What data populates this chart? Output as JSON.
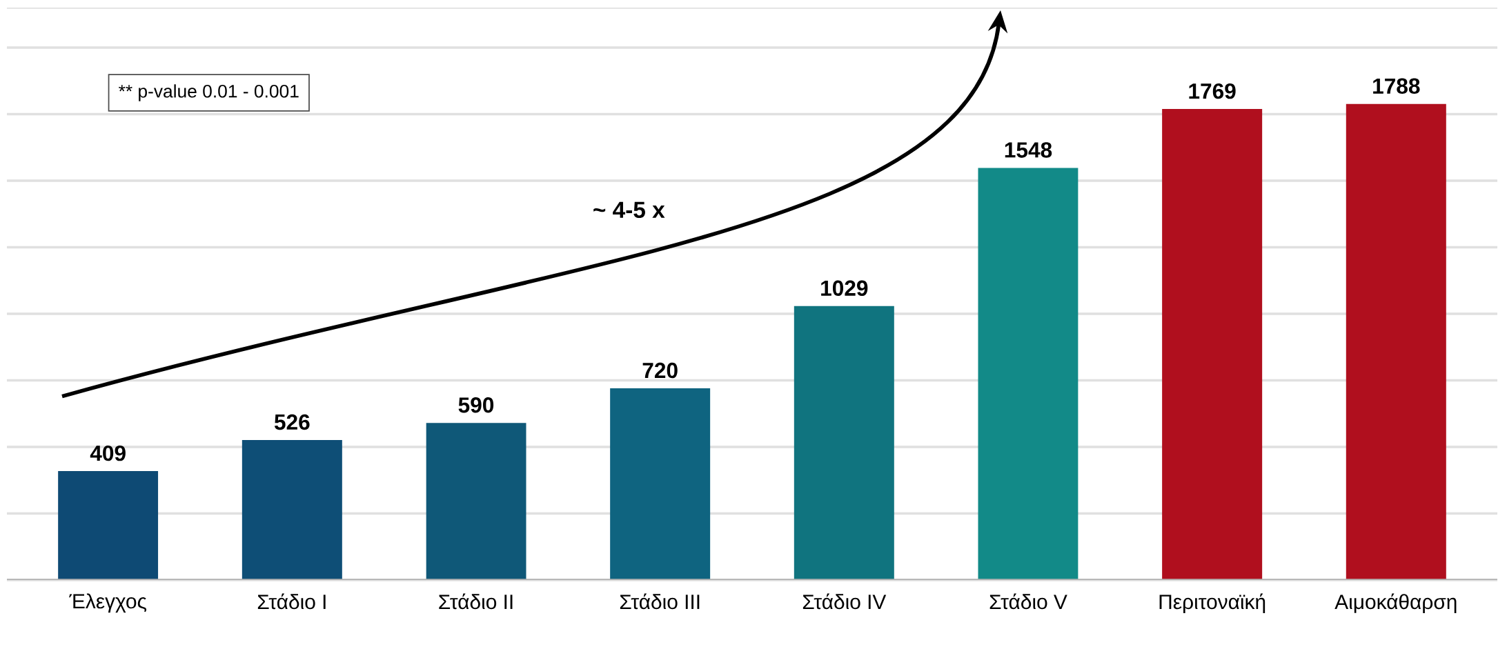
{
  "chart_data": {
    "type": "bar",
    "categories": [
      "Έλεγχος",
      "Στάδιο Ι",
      "Στάδιο ΙΙ",
      "Στάδιο ΙΙΙ",
      "Στάδιο ΙV",
      "Στάδιο V",
      "Περιτοναϊκή",
      "Αιμοκάθαρση"
    ],
    "values": [
      409,
      526,
      590,
      720,
      1029,
      1548,
      1769,
      1788
    ],
    "colors": [
      "#0e4a74",
      "#0e4e76",
      "#0f5878",
      "#0f6480",
      "#10747f",
      "#128a88",
      "#b00f1e",
      "#b00f1e"
    ],
    "data_labels": true,
    "ylim": [
      0,
      2150
    ],
    "yticks": [
      {
        "value": 0,
        "label": null
      },
      {
        "value": 250,
        "label": null
      },
      {
        "value": 500,
        "label": null
      },
      {
        "value": 750,
        "label": null
      },
      {
        "value": 1000,
        "label": null
      },
      {
        "value": 1250,
        "label": null
      },
      {
        "value": 1500,
        "label": null
      },
      {
        "value": 1750,
        "label": null
      },
      {
        "value": 2000,
        "label": null
      }
    ],
    "tick_labels": "x",
    "grid": "y",
    "annotations": [
      "** p-value  0.01 - 0.001",
      "~ 4-5 x"
    ]
  }
}
